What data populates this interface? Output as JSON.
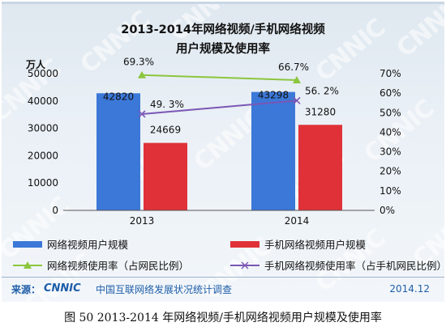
{
  "title_line1": "2013-2014年网络视频/手机网络视频",
  "title_line2": "用户规模及使用率",
  "unit_label": "万人",
  "source": {
    "label": "来源：",
    "logo_text": "CNNIC",
    "name": "中国互联网络发展状况统计调查",
    "date": "2014.12"
  },
  "caption": "图  50    2013-2014 年网络视频/手机网络视频用户规模及使用率",
  "colors": {
    "bar_video": "#3b78d8",
    "bar_mobile": "#e03138",
    "line_video": "#8cc63e",
    "line_mobile": "#7b57b5"
  },
  "chart_data": {
    "type": "bar",
    "categories": [
      "2013",
      "2014"
    ],
    "series": [
      {
        "name": "网络视频用户规模",
        "kind": "bar",
        "axis": "left",
        "values": [
          42820,
          43298
        ],
        "labels": [
          "42820",
          "43298"
        ]
      },
      {
        "name": "手机网络视频用户规模",
        "kind": "bar",
        "axis": "left",
        "values": [
          24669,
          31280
        ],
        "labels": [
          "24669",
          "31280"
        ]
      },
      {
        "name": "网络视频使用率（占网民比例）",
        "kind": "line",
        "axis": "right",
        "values": [
          69.3,
          66.7
        ],
        "labels": [
          "69.3%",
          "66.7%"
        ]
      },
      {
        "name": "手机网络视频使用率（占手机网民比例）",
        "kind": "line",
        "axis": "right",
        "values": [
          49.3,
          56.2
        ],
        "labels": [
          "49. 3%",
          "56. 2%"
        ]
      }
    ],
    "ylim_left": [
      0,
      50000
    ],
    "yticks_left": [
      "0",
      "10000",
      "20000",
      "30000",
      "40000",
      "50000"
    ],
    "ylim_right": [
      0,
      70
    ],
    "yticks_right": [
      "0%",
      "10%",
      "20%",
      "30%",
      "40%",
      "50%",
      "60%",
      "70%"
    ],
    "grid": false,
    "legend_position": "bottom"
  }
}
